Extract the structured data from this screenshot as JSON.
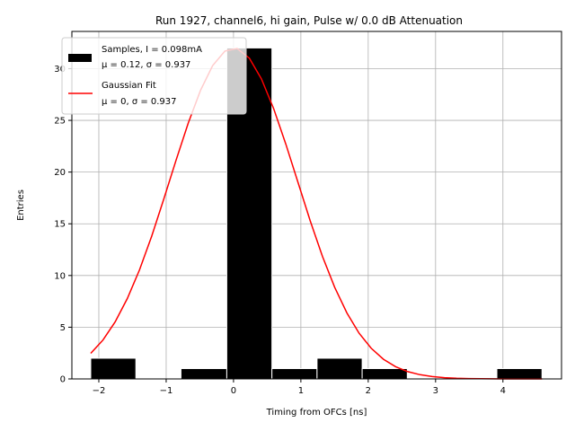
{
  "chart_data": {
    "type": "bar",
    "title": "Run 1927, channel6, hi gain, Pulse w/ 0.0 dB Attenuation",
    "xlabel": "Timing from OFCs [ns]",
    "ylabel": "Entries",
    "xlim": [
      -2.4,
      4.87
    ],
    "ylim": [
      0,
      33.6
    ],
    "xticks": [
      -2,
      -1,
      0,
      1,
      2,
      3,
      4
    ],
    "yticks": [
      0,
      5,
      10,
      15,
      20,
      25,
      30
    ],
    "grid": true,
    "legend_position": "top-left",
    "histogram": {
      "name_line1": "Samples, I = 0.098mA",
      "name_line2": "μ = 0.12, σ = 0.937",
      "color": "#000000",
      "edge_color": "#ffffff",
      "bins": [
        {
          "x0": -2.12,
          "x1": -1.45,
          "count": 2
        },
        {
          "x0": -0.78,
          "x1": -0.1,
          "count": 1
        },
        {
          "x0": -0.1,
          "x1": 0.57,
          "count": 32
        },
        {
          "x0": 0.57,
          "x1": 1.24,
          "count": 1
        },
        {
          "x0": 1.24,
          "x1": 1.91,
          "count": 2
        },
        {
          "x0": 1.91,
          "x1": 2.58,
          "count": 1
        },
        {
          "x0": 3.91,
          "x1": 4.58,
          "count": 1
        }
      ]
    },
    "fit": {
      "name_line1": "Gaussian Fit",
      "name_line2": "μ = 0, σ = 0.937",
      "color": "#ff0000",
      "mu": 0,
      "sigma": 0.937,
      "amplitude": 32,
      "x_range": [
        -2.12,
        4.58
      ]
    }
  }
}
